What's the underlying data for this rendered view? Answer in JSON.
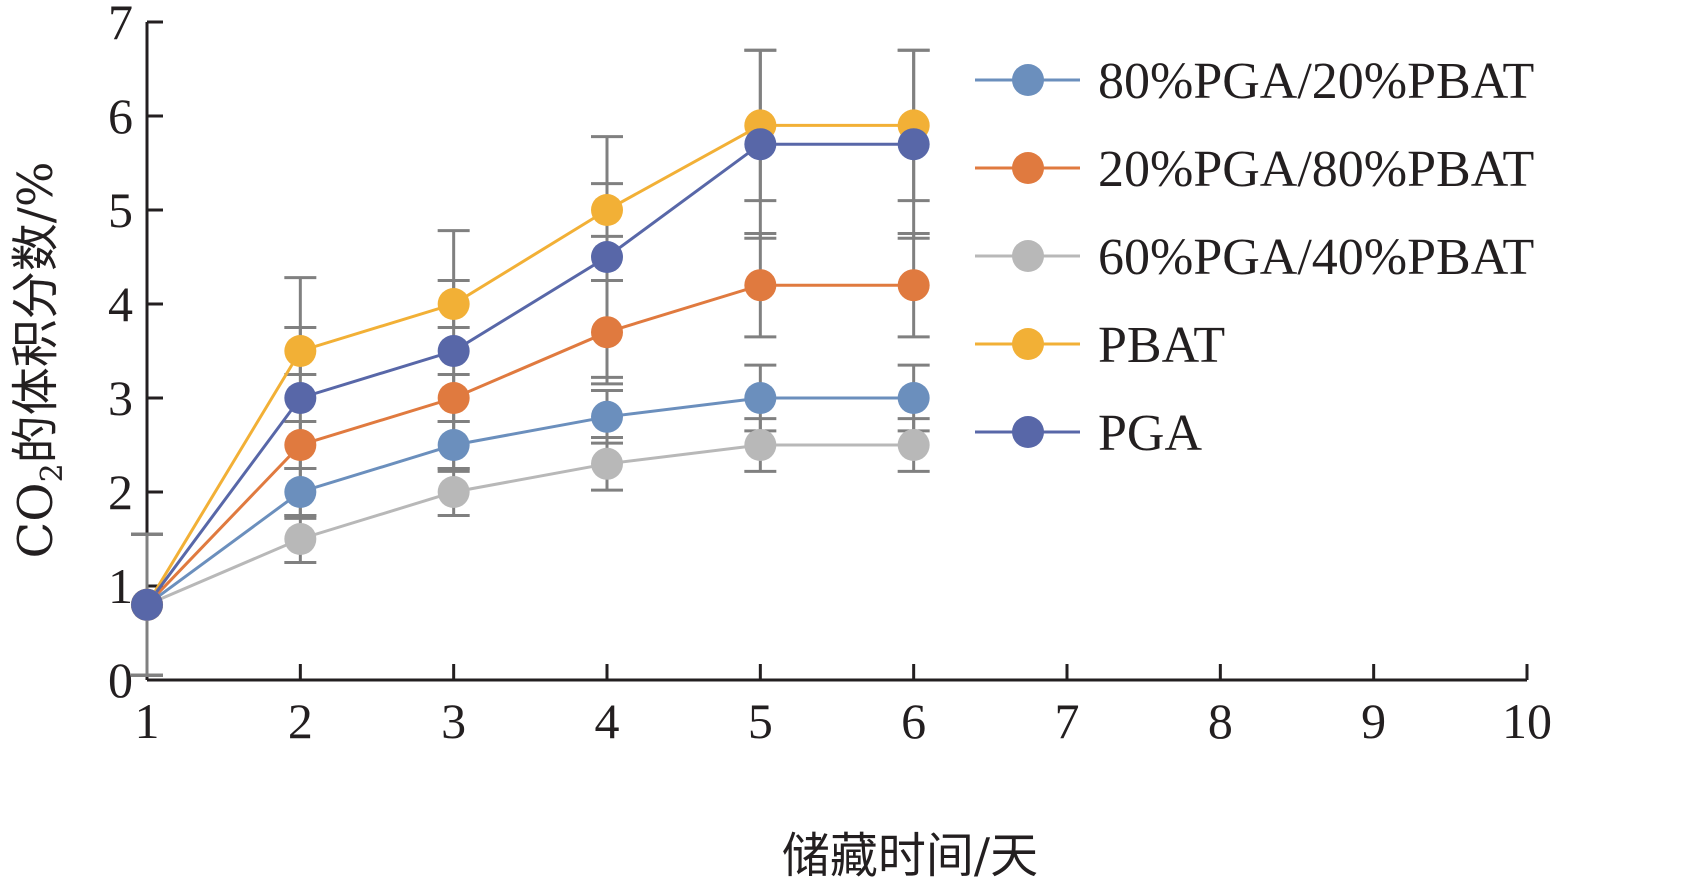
{
  "chart_data": {
    "type": "line",
    "x": [
      1,
      2,
      3,
      4,
      5,
      6
    ],
    "xlim": [
      1,
      10
    ],
    "ylim": [
      0,
      7
    ],
    "xticks": [
      "1",
      "2",
      "3",
      "4",
      "5",
      "6",
      "7",
      "8",
      "9",
      "10"
    ],
    "yticks": [
      "0",
      "1",
      "2",
      "3",
      "4",
      "5",
      "6",
      "7"
    ],
    "xlabel": "储藏时间/天",
    "ylabel_prefix": "CO",
    "ylabel_sub": "2",
    "ylabel_suffix": "的体积分数/%",
    "grid": false,
    "legend_position": "right",
    "error_bar_color": "#808080",
    "series": [
      {
        "name": "80%PGA/20%PBAT",
        "color": "#6b8fbd",
        "values": [
          0.8,
          2.0,
          2.5,
          2.8,
          3.0,
          3.0
        ],
        "error": [
          0.75,
          0.25,
          0.25,
          0.28,
          0.35,
          0.35
        ]
      },
      {
        "name": "20%PGA/80%PBAT",
        "color": "#e07a3f",
        "values": [
          0.8,
          2.5,
          3.0,
          3.7,
          4.2,
          4.2
        ],
        "error": [
          0.75,
          0.25,
          0.25,
          0.55,
          0.55,
          0.55
        ]
      },
      {
        "name": "60%PGA/40%PBAT",
        "color": "#b8b8b8",
        "values": [
          0.8,
          1.5,
          2.0,
          2.3,
          2.5,
          2.5
        ],
        "error": [
          0.75,
          0.25,
          0.25,
          0.28,
          0.28,
          0.28
        ]
      },
      {
        "name": "PBAT",
        "color": "#f2b036",
        "values": [
          0.8,
          3.5,
          4.0,
          5.0,
          5.9,
          5.9
        ],
        "error": [
          0.75,
          0.25,
          0.25,
          0.28,
          0.8,
          0.8
        ]
      },
      {
        "name": "PGA",
        "color": "#5867a8",
        "values": [
          0.8,
          3.0,
          3.5,
          4.5,
          5.7,
          5.7
        ],
        "error": [
          0.75,
          1.28,
          1.28,
          1.28,
          1.0,
          1.0
        ]
      }
    ]
  }
}
